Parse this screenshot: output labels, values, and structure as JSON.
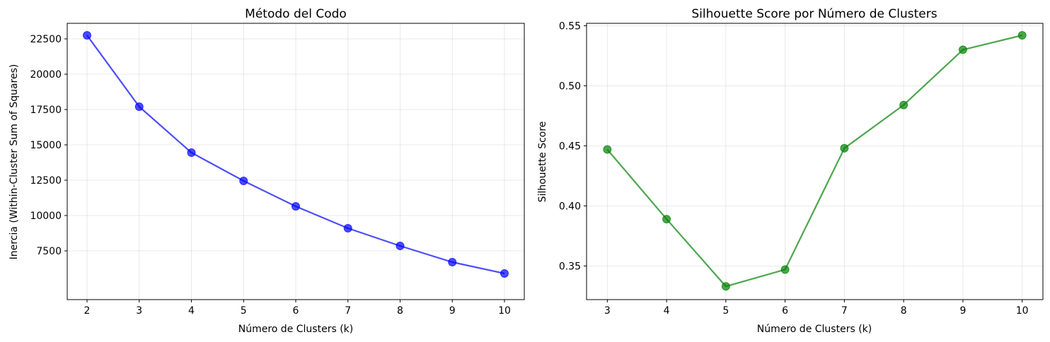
{
  "chart_data": [
    {
      "type": "line",
      "title": "Método del Codo",
      "xlabel": "Número de Clusters (k)",
      "ylabel": "Inercia (Within-Cluster Sum of Squares)",
      "x": [
        2,
        3,
        4,
        5,
        6,
        7,
        8,
        9,
        10
      ],
      "series": [
        {
          "values": [
            22750,
            17700,
            14450,
            12450,
            10650,
            9100,
            7850,
            6700,
            5900
          ]
        }
      ],
      "xlim": [
        1.62,
        10.38
      ],
      "ylim": [
        4050,
        23600
      ],
      "xticks": [
        2,
        3,
        4,
        5,
        6,
        7,
        8,
        9,
        10
      ],
      "yticks": [
        7500,
        10000,
        12500,
        15000,
        17500,
        20000,
        22500
      ],
      "color": "#0000ff",
      "grid": true,
      "legend": false
    },
    {
      "type": "line",
      "title": "Silhouette Score por Número de Clusters",
      "xlabel": "Número de Clusters (k)",
      "ylabel": "Silhouette Score",
      "x": [
        3,
        4,
        5,
        6,
        7,
        8,
        9,
        10
      ],
      "series": [
        {
          "values": [
            0.447,
            0.389,
            0.333,
            0.347,
            0.448,
            0.484,
            0.53,
            0.542
          ]
        }
      ],
      "xlim": [
        2.65,
        10.35
      ],
      "ylim": [
        0.322,
        0.552
      ],
      "xticks": [
        3,
        4,
        5,
        6,
        7,
        8,
        9,
        10
      ],
      "yticks": [
        0.35,
        0.4,
        0.45,
        0.5,
        0.55
      ],
      "ytick_decimals": 2,
      "color": "#008000",
      "grid": true,
      "legend": false
    }
  ]
}
